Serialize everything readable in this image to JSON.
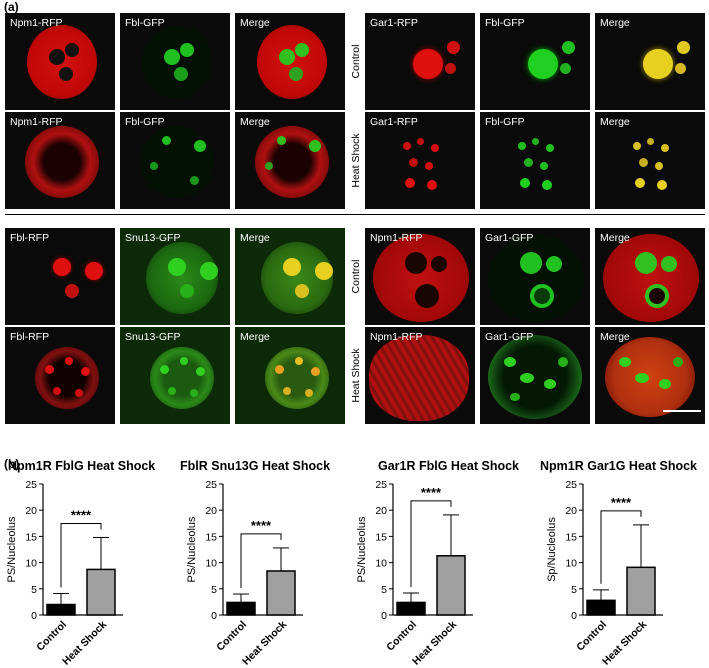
{
  "panel_a_label": "(a)",
  "panel_b_label": "(b)",
  "row_labels": {
    "control": "Control",
    "heat_shock": "Heat Shock"
  },
  "micrographs": {
    "group1": [
      "Npm1-RFP",
      "Fbl-GFP",
      "Merge"
    ],
    "group2": [
      "Gar1-RFP",
      "Fbl-GFP",
      "Merge"
    ],
    "group3": [
      "Fbl-RFP",
      "Snu13-GFP",
      "Merge"
    ],
    "group4": [
      "Npm1-RFP",
      "Gar1-GFP",
      "Merge"
    ]
  },
  "colors": {
    "rfp": "#e81010",
    "gfp": "#22d022",
    "merge_yellow": "#e8d020",
    "bar_control": "#000000",
    "bar_heat": "#a0a0a0"
  },
  "chart_data": [
    {
      "type": "bar",
      "title": "Npm1R FblG Heat Shock",
      "ylabel": "PS/Nucleolus",
      "categories": [
        "Control",
        "Heat Shock"
      ],
      "values": [
        2.0,
        8.7
      ],
      "errors": [
        2.1,
        6.1
      ],
      "ylim": [
        0,
        25
      ],
      "yticks": [
        "0",
        "5",
        "10",
        "15",
        "20",
        "25"
      ],
      "significance": "****"
    },
    {
      "type": "bar",
      "title": "FblR Snu13G Heat Shock",
      "ylabel": "PS/Nucleolus",
      "categories": [
        "Control",
        "Heat Shock"
      ],
      "values": [
        2.4,
        8.4
      ],
      "errors": [
        1.6,
        4.4
      ],
      "ylim": [
        0,
        25
      ],
      "yticks": [
        "0",
        "5",
        "10",
        "15",
        "20",
        "25"
      ],
      "significance": "****"
    },
    {
      "type": "bar",
      "title": "Gar1R FblG Heat Shock",
      "ylabel": "PS/Nucleolus",
      "categories": [
        "Control",
        "Heat Shock"
      ],
      "values": [
        2.4,
        11.3
      ],
      "errors": [
        1.8,
        7.8
      ],
      "ylim": [
        0,
        25
      ],
      "yticks": [
        "0",
        "5",
        "10",
        "15",
        "20",
        "25"
      ],
      "significance": "****"
    },
    {
      "type": "bar",
      "title": "Npm1R Gar1G Heat Shock",
      "ylabel": "Sp/Nucleolus",
      "categories": [
        "Control",
        "Heat Shock"
      ],
      "values": [
        2.8,
        9.1
      ],
      "errors": [
        2.0,
        8.1
      ],
      "ylim": [
        0,
        25
      ],
      "yticks": [
        "0",
        "5",
        "10",
        "15",
        "20",
        "25"
      ],
      "significance": "****"
    }
  ]
}
